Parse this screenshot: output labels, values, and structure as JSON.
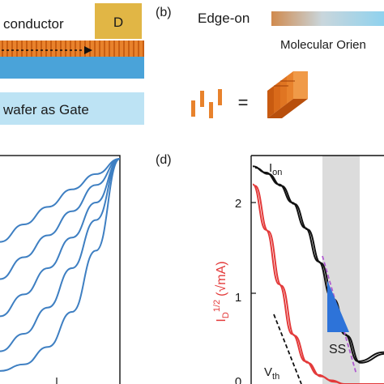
{
  "colors": {
    "semiconductor": "#e8822c",
    "contact": "#e1b645",
    "dielectric": "#4aa3d9",
    "substrate": "#bde3f4",
    "curve_blue": "#3e7fc2",
    "curve_black": "#111111",
    "curve_red": "#e33a3a",
    "fit_purple": "#b05bd0",
    "ss_triangle": "#2d73d9",
    "shade": "#dcdcdc"
  },
  "panel_a": {
    "semiconductor_label": "conductor",
    "drain_label": "D",
    "substrate_label": "wafer as Gate"
  },
  "panel_b": {
    "tag": "(b)",
    "edge_on_label": "Edge-on",
    "orientation_label": "Molecular Orien",
    "equals": "="
  },
  "panel_c": {
    "icons": [
      "blue-output-curve"
    ]
  },
  "panel_d": {
    "tag": "(d)",
    "ion_label_main": "I",
    "ion_label_sub": "on",
    "ylabel_base": "I",
    "ylabel_sub": "D",
    "ylabel_sup": "1/2",
    "ylabel_unit": "(√mA)",
    "ss_label": "SS",
    "vth_label_main": "V",
    "vth_label_sub": "th",
    "yticks": [
      "2",
      "1",
      "0"
    ]
  },
  "chart_data": [
    {
      "type": "line",
      "title": "",
      "xlabel": "",
      "ylabel": "",
      "series": [
        {
          "values": [
            0.62,
            0.7,
            0.78,
            0.86,
            0.93,
            1.0
          ]
        },
        {
          "values": [
            0.45,
            0.55,
            0.65,
            0.76,
            0.88,
            1.0
          ]
        },
        {
          "values": [
            0.28,
            0.38,
            0.5,
            0.64,
            0.8,
            1.0
          ]
        },
        {
          "values": [
            0.12,
            0.2,
            0.32,
            0.5,
            0.72,
            1.0
          ]
        },
        {
          "values": [
            0.03,
            0.06,
            0.14,
            0.3,
            0.58,
            1.0
          ]
        }
      ]
    },
    {
      "type": "line",
      "title": "",
      "xlabel": "",
      "ylabel": "ID 1/2 (√mA)",
      "ylim": [
        0,
        2.5
      ],
      "x": [
        0,
        0.1,
        0.2,
        0.3,
        0.4,
        0.5,
        0.6,
        0.7,
        0.8,
        1.0
      ],
      "series": [
        {
          "values": [
            2.4,
            2.33,
            2.2,
            2.0,
            1.72,
            1.35,
            0.95,
            0.55,
            0.25,
            0.35
          ]
        },
        {
          "values": [
            2.2,
            1.7,
            1.1,
            0.55,
            0.25,
            0.1,
            0.04,
            0.0,
            0.0,
            0.0
          ]
        }
      ]
    }
  ]
}
